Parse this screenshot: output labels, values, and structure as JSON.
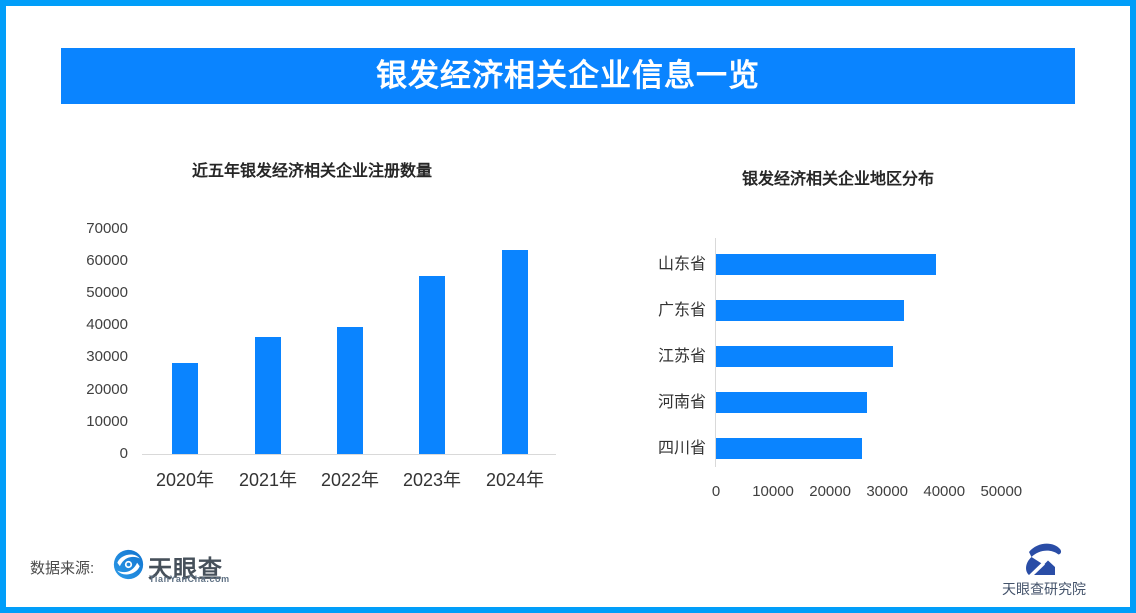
{
  "page": {
    "banner_title": "银发经济相关企业信息一览"
  },
  "colors": {
    "primary_blue": "#0A84FF",
    "frame_blue": "#019EF9",
    "axis_gray": "#D9D9D9"
  },
  "chart_data": [
    {
      "type": "bar",
      "title": "近五年银发经济相关企业注册数量",
      "categories": [
        "2020年",
        "2021年",
        "2022年",
        "2023年",
        "2024年"
      ],
      "values": [
        28400,
        36300,
        39600,
        55400,
        63500
      ],
      "ylabel": "",
      "xlabel": "",
      "y_ticks": [
        0,
        10000,
        20000,
        30000,
        40000,
        50000,
        60000,
        70000
      ],
      "ylim": [
        0,
        70000
      ],
      "grid": false,
      "legend": "none",
      "bar_color": "#0A84FF"
    },
    {
      "type": "bar",
      "orientation": "horizontal",
      "title": "银发经济相关企业地区分布",
      "categories": [
        "山东省",
        "广东省",
        "江苏省",
        "河南省",
        "四川省"
      ],
      "values": [
        38500,
        33000,
        31000,
        26500,
        25500
      ],
      "ylabel": "",
      "xlabel": "",
      "x_ticks": [
        0,
        10000,
        20000,
        30000,
        40000,
        50000
      ],
      "xlim": [
        0,
        50000
      ],
      "grid": false,
      "legend": "none",
      "bar_color": "#0A84FF"
    }
  ],
  "footer": {
    "source_label": "数据来源:",
    "source_logo_name": "天眼查",
    "source_logo_sub": "TianYanCha.com",
    "institute_logo_name": "天眼查研究院"
  }
}
